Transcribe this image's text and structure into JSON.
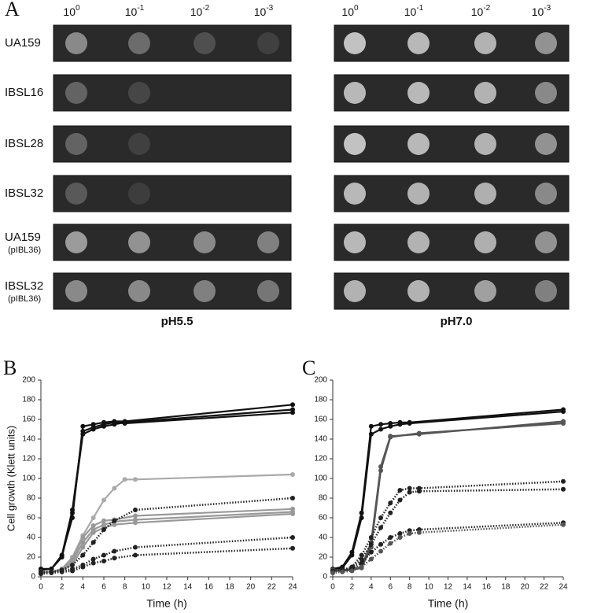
{
  "panel_a": {
    "label": "A",
    "dilutions": [
      {
        "base": "10",
        "exponent": "0"
      },
      {
        "base": "10",
        "exponent": "-1"
      },
      {
        "base": "10",
        "exponent": "-2"
      },
      {
        "base": "10",
        "exponent": "-3"
      }
    ],
    "rows": [
      {
        "label": "UA159"
      },
      {
        "label": "IBSL16"
      },
      {
        "label": "IBSL28"
      },
      {
        "label": "IBSL32"
      },
      {
        "label": "UA159",
        "sublabel": "(pIBL36)"
      },
      {
        "label": "IBSL32",
        "sublabel": "(pIBL36)"
      }
    ],
    "conditions": [
      "pH5.5",
      "pH7.0"
    ]
  },
  "chart_data": [
    {
      "type": "line",
      "panel_label": "B",
      "xlabel": "Time (h)",
      "ylabel": "Cell growth (Klett units)",
      "xlim": [
        0,
        24
      ],
      "ylim": [
        0,
        200
      ],
      "xticks": [
        0,
        2,
        4,
        6,
        8,
        10,
        12,
        14,
        16,
        18,
        20,
        22,
        24
      ],
      "yticks": [
        0,
        20,
        40,
        60,
        80,
        100,
        120,
        140,
        160,
        180,
        200
      ],
      "series": [
        {
          "color": "#111111",
          "line_style": "solid",
          "x": [
            0,
            1,
            2,
            3,
            4,
            5,
            6,
            7,
            8,
            24
          ],
          "values": [
            8,
            8,
            22,
            60,
            153,
            155,
            157,
            158,
            158,
            175
          ]
        },
        {
          "color": "#111111",
          "line_style": "solid",
          "x": [
            0,
            1,
            2,
            3,
            4,
            5,
            6,
            7,
            8,
            24
          ],
          "values": [
            7,
            8,
            20,
            65,
            145,
            150,
            153,
            155,
            157,
            170
          ]
        },
        {
          "color": "#111111",
          "line_style": "solid",
          "x": [
            0,
            1,
            2,
            3,
            4,
            5,
            6,
            7,
            8,
            24
          ],
          "values": [
            8,
            8,
            22,
            68,
            148,
            152,
            155,
            157,
            156,
            167
          ]
        },
        {
          "color": "#aaaaaa",
          "line_style": "solid",
          "x": [
            0,
            1,
            2,
            3,
            4,
            5,
            6,
            7,
            8,
            9,
            24
          ],
          "values": [
            5,
            5,
            8,
            20,
            42,
            60,
            78,
            90,
            99,
            99,
            104
          ]
        },
        {
          "color": "#999999",
          "line_style": "solid",
          "x": [
            0,
            1,
            2,
            3,
            4,
            5,
            6,
            7,
            9,
            24
          ],
          "values": [
            5,
            5,
            8,
            18,
            40,
            52,
            57,
            58,
            62,
            69
          ]
        },
        {
          "color": "#999999",
          "line_style": "solid",
          "x": [
            0,
            1,
            2,
            3,
            4,
            5,
            6,
            7,
            9,
            24
          ],
          "values": [
            5,
            5,
            7,
            15,
            35,
            48,
            53,
            56,
            58,
            66
          ]
        },
        {
          "color": "#999999",
          "line_style": "solid",
          "x": [
            0,
            1,
            2,
            3,
            4,
            5,
            6,
            7,
            9,
            24
          ],
          "values": [
            4,
            5,
            7,
            12,
            30,
            45,
            50,
            53,
            55,
            64
          ]
        },
        {
          "color": "#222222",
          "line_style": "dotted",
          "x": [
            0,
            1,
            2,
            3,
            4,
            5,
            6,
            7,
            9,
            24
          ],
          "values": [
            5,
            5,
            7,
            12,
            22,
            35,
            48,
            57,
            68,
            80
          ]
        },
        {
          "color": "#222222",
          "line_style": "dotted",
          "x": [
            0,
            1,
            2,
            3,
            4,
            5,
            6,
            7,
            9,
            24
          ],
          "values": [
            4,
            5,
            6,
            8,
            12,
            18,
            22,
            26,
            30,
            40
          ]
        },
        {
          "color": "#222222",
          "line_style": "dotted",
          "x": [
            0,
            1,
            2,
            3,
            4,
            5,
            6,
            7,
            9,
            24
          ],
          "values": [
            3,
            4,
            5,
            6,
            10,
            14,
            16,
            19,
            22,
            29
          ]
        }
      ]
    },
    {
      "type": "line",
      "panel_label": "C",
      "xlabel": "Time (h)",
      "xlim": [
        0,
        24
      ],
      "ylim": [
        0,
        200
      ],
      "xticks": [
        0,
        2,
        4,
        6,
        8,
        10,
        12,
        14,
        16,
        18,
        20,
        22,
        24
      ],
      "yticks": [
        0,
        20,
        40,
        60,
        80,
        100,
        120,
        140,
        160,
        180,
        200
      ],
      "series": [
        {
          "color": "#111111",
          "line_style": "solid",
          "x": [
            0,
            1,
            2,
            3,
            4,
            5,
            6,
            7,
            8,
            24
          ],
          "values": [
            8,
            10,
            25,
            65,
            153,
            155,
            156,
            157,
            157,
            170
          ]
        },
        {
          "color": "#111111",
          "line_style": "solid",
          "x": [
            0,
            1,
            2,
            3,
            4,
            5,
            6,
            7,
            8,
            24
          ],
          "values": [
            7,
            9,
            22,
            60,
            145,
            150,
            153,
            155,
            156,
            168
          ]
        },
        {
          "color": "#555555",
          "line_style": "solid",
          "x": [
            0,
            1,
            2,
            3,
            4,
            5,
            6,
            9,
            24
          ],
          "values": [
            7,
            7,
            8,
            10,
            35,
            112,
            143,
            145,
            158
          ]
        },
        {
          "color": "#555555",
          "line_style": "solid",
          "x": [
            0,
            1,
            2,
            3,
            4,
            5,
            6,
            9,
            24
          ],
          "values": [
            6,
            6,
            7,
            9,
            30,
            108,
            142,
            146,
            156
          ]
        },
        {
          "color": "#222222",
          "line_style": "dotted",
          "x": [
            0,
            1,
            2,
            3,
            4,
            5,
            6,
            7,
            8,
            9,
            24
          ],
          "values": [
            6,
            7,
            10,
            22,
            40,
            60,
            75,
            88,
            90,
            90,
            97
          ]
        },
        {
          "color": "#222222",
          "line_style": "dotted",
          "x": [
            0,
            1,
            2,
            3,
            4,
            5,
            6,
            7,
            8,
            9,
            24
          ],
          "values": [
            6,
            7,
            9,
            18,
            33,
            50,
            65,
            78,
            86,
            87,
            89
          ]
        },
        {
          "color": "#222222",
          "line_style": "dotted",
          "x": [
            0,
            1,
            2,
            3,
            4,
            5,
            6,
            7,
            8,
            9,
            24
          ],
          "values": [
            5,
            6,
            8,
            14,
            25,
            33,
            40,
            44,
            47,
            48,
            55
          ]
        },
        {
          "color": "#555555",
          "line_style": "dotted",
          "x": [
            0,
            1,
            2,
            3,
            4,
            5,
            6,
            7,
            8,
            9,
            24
          ],
          "values": [
            4,
            5,
            6,
            10,
            18,
            26,
            34,
            40,
            44,
            45,
            53
          ]
        }
      ]
    }
  ]
}
